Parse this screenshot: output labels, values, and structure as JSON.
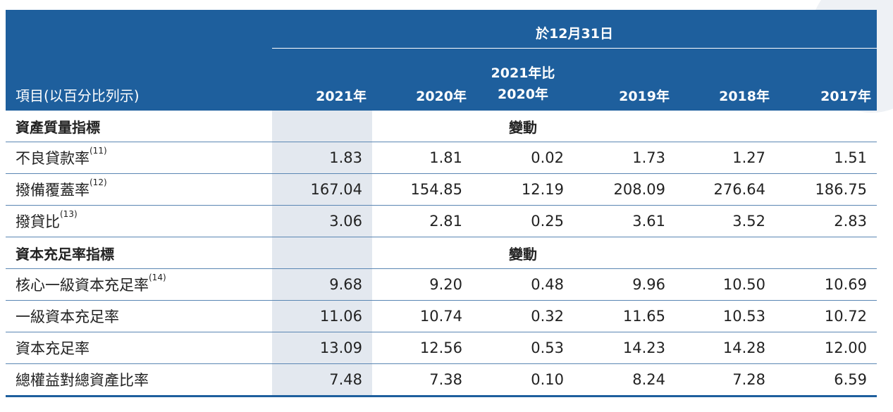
{
  "header": {
    "date_label": "於12月31日",
    "item_label": "項目(以百分比列示)",
    "col_2021": "2021年",
    "col_2020": "2020年",
    "col_change_line1": "2021年比",
    "col_change_line2": "2020年",
    "col_2019": "2019年",
    "col_2018": "2018年",
    "col_2017": "2017年"
  },
  "sections": [
    {
      "title": "資產質量指標",
      "change_label": "變動",
      "rows": [
        {
          "label": "不良貸款率",
          "note": "(11)",
          "values": [
            "1.83",
            "1.81",
            "0.02",
            "1.73",
            "1.27",
            "1.51"
          ]
        },
        {
          "label": "撥備覆蓋率",
          "note": "(12)",
          "values": [
            "167.04",
            "154.85",
            "12.19",
            "208.09",
            "276.64",
            "186.75"
          ]
        },
        {
          "label": "撥貸比",
          "note": "(13)",
          "values": [
            "3.06",
            "2.81",
            "0.25",
            "3.61",
            "3.52",
            "2.83"
          ]
        }
      ]
    },
    {
      "title": "資本充足率指標",
      "change_label": "變動",
      "rows": [
        {
          "label": "核心一級資本充足率",
          "note": "(14)",
          "values": [
            "9.68",
            "9.20",
            "0.48",
            "9.96",
            "10.50",
            "10.69"
          ]
        },
        {
          "label": "一級資本充足率",
          "note": "",
          "values": [
            "11.06",
            "10.74",
            "0.32",
            "11.65",
            "10.53",
            "10.72"
          ]
        },
        {
          "label": "資本充足率",
          "note": "",
          "values": [
            "13.09",
            "12.56",
            "0.53",
            "14.23",
            "14.28",
            "12.00"
          ]
        },
        {
          "label": "總權益對總資產比率",
          "note": "",
          "values": [
            "7.48",
            "7.38",
            "0.10",
            "8.24",
            "7.28",
            "6.59"
          ]
        }
      ]
    }
  ]
}
